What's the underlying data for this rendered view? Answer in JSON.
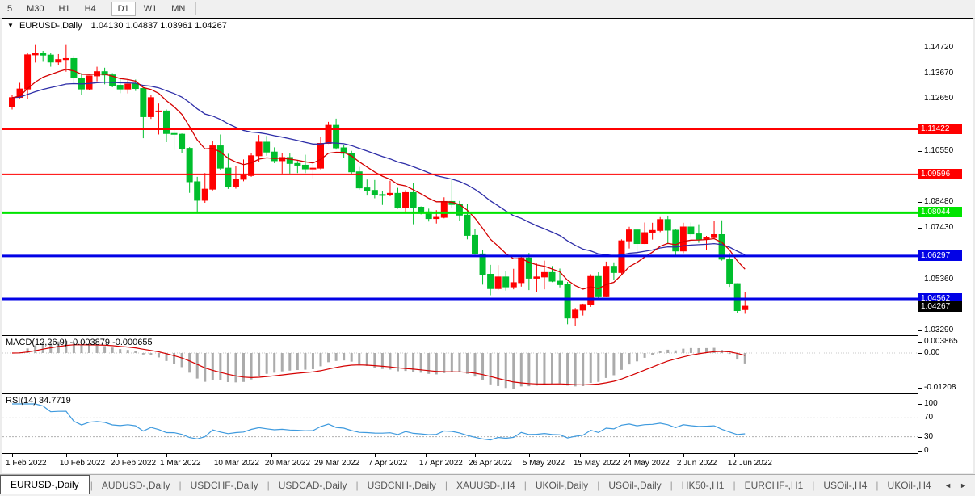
{
  "toolbar": {
    "timeframes": [
      {
        "label": "5",
        "active": false,
        "sep_after": false
      },
      {
        "label": "M30",
        "active": false,
        "sep_after": false
      },
      {
        "label": "H1",
        "active": false,
        "sep_after": false
      },
      {
        "label": "H4",
        "active": false,
        "sep_after": true
      },
      {
        "label": "D1",
        "active": true,
        "sep_after": false
      },
      {
        "label": "W1",
        "active": false,
        "sep_after": false
      },
      {
        "label": "MN",
        "active": false,
        "sep_after": true
      }
    ]
  },
  "chart": {
    "title_marker": "▼",
    "title_symbol": "EURUSD-,Daily",
    "title_ohlc": "1.04130 1.04837 1.03961 1.04267",
    "macd_label": "MACD(12,26,9) -0.003879 -0.000655",
    "rsi_label": "RSI(14) 34.7719"
  },
  "chart_data": {
    "type": "candlestick",
    "symbol": "EURUSD-",
    "timeframe": "Daily",
    "ohlc_display": {
      "open": "1.04130",
      "high": "1.04837",
      "low": "1.03961",
      "close": "1.04267"
    },
    "colors": {
      "up": "#ff0000",
      "down": "#00be2d",
      "ma_fast": "#d40000",
      "ma_slow": "#2e2ea8",
      "hline_red": "#ff0000",
      "hline_green": "#00e400",
      "hline_blue": "#0202e6",
      "macd_hist": "#ababab",
      "macd_signal": "#d40000",
      "rsi": "#3e9ade",
      "current_bg": "#000000"
    },
    "y_range": {
      "top_price": 1.1472,
      "top_y": 36,
      "bottom_price": 1.0329,
      "bottom_y": 386
    },
    "y_axis_ticks": [
      "1.14720",
      "1.13670",
      "1.12650",
      "1.10550",
      "1.08480",
      "1.07430",
      "1.05360",
      "1.03290"
    ],
    "hlines": [
      {
        "label": "1.11422",
        "price": 1.11422,
        "color": "#ff0000",
        "weight": 2
      },
      {
        "label": "1.09596",
        "price": 1.09596,
        "color": "#ff0000",
        "weight": 2
      },
      {
        "label": "1.08044",
        "price": 1.08044,
        "color": "#00e400",
        "weight": 3
      },
      {
        "label": "1.06297",
        "price": 1.06297,
        "color": "#0202e6",
        "weight": 3
      },
      {
        "label": "1.04562",
        "price": 1.04562,
        "color": "#0202e6",
        "weight": 3
      }
    ],
    "current_price": {
      "label": "1.04267",
      "price": 1.04267
    },
    "moving_averages": [
      {
        "name": "fast",
        "period": 10,
        "color": "#d40000"
      },
      {
        "name": "slow",
        "period": 30,
        "color": "#2e2ea8"
      }
    ],
    "macd": {
      "label": "MACD(12,26,9) -0.003879 -0.000655",
      "params": [
        12,
        26,
        9
      ],
      "values_display": [
        "-0.003879",
        "-0.000655"
      ],
      "axis": [
        {
          "t": "0.003865",
          "v": 0.003865
        },
        {
          "t": "0.00",
          "v": 0
        },
        {
          "t": "-0.01208",
          "v": -0.01208
        }
      ]
    },
    "rsi": {
      "label": "RSI(14) 34.7719",
      "period": 14,
      "value": 34.7719,
      "axis": [
        {
          "t": "100",
          "v": 100
        },
        {
          "t": "70",
          "v": 70
        },
        {
          "t": "30",
          "v": 30
        },
        {
          "t": "0",
          "v": 0
        }
      ],
      "levels": [
        70,
        30
      ]
    },
    "date_labels": [
      [
        "1 Feb 2022",
        0
      ],
      [
        "10 Feb 2022",
        7
      ],
      [
        "20 Feb 2022",
        13.6
      ],
      [
        "1 Mar 2022",
        20
      ],
      [
        "10 Mar 2022",
        27
      ],
      [
        "20 Mar 2022",
        33.6
      ],
      [
        "29 Mar 2022",
        40
      ],
      [
        "7 Apr 2022",
        47
      ],
      [
        "17 Apr 2022",
        53.6
      ],
      [
        "26 Apr 2022",
        60
      ],
      [
        "5 May 2022",
        67
      ],
      [
        "15 May 2022",
        73.6
      ],
      [
        "24 May 2022",
        80
      ],
      [
        "2 Jun 2022",
        87
      ],
      [
        "12 Jun 2022",
        93.6
      ]
    ],
    "candles": [
      [
        1.1235,
        1.128,
        1.1222,
        1.127
      ],
      [
        1.1271,
        1.133,
        1.1267,
        1.1305
      ],
      [
        1.1305,
        1.1451,
        1.1266,
        1.1443
      ],
      [
        1.1443,
        1.1483,
        1.1412,
        1.145
      ],
      [
        1.1448,
        1.1459,
        1.1415,
        1.1442
      ],
      [
        1.1442,
        1.1449,
        1.1395,
        1.1414
      ],
      [
        1.1414,
        1.1446,
        1.1402,
        1.1424
      ],
      [
        1.1424,
        1.1483,
        1.1375,
        1.1428
      ],
      [
        1.1428,
        1.144,
        1.1329,
        1.135
      ],
      [
        1.1348,
        1.1369,
        1.128,
        1.1305
      ],
      [
        1.1305,
        1.1359,
        1.1301,
        1.1358
      ],
      [
        1.1358,
        1.1395,
        1.1336,
        1.1375
      ],
      [
        1.1375,
        1.1391,
        1.1324,
        1.1362
      ],
      [
        1.1362,
        1.1369,
        1.1312,
        1.132
      ],
      [
        1.132,
        1.135,
        1.1288,
        1.1305
      ],
      [
        1.1305,
        1.1342,
        1.1287,
        1.1325
      ],
      [
        1.1325,
        1.1343,
        1.1297,
        1.1307
      ],
      [
        1.1307,
        1.131,
        1.1106,
        1.1193
      ],
      [
        1.1193,
        1.128,
        1.1184,
        1.127
      ],
      [
        1.1215,
        1.1246,
        1.1121,
        1.1216
      ],
      [
        1.1216,
        1.1222,
        1.109,
        1.1125
      ],
      [
        1.1125,
        1.1147,
        1.1058,
        1.1122
      ],
      [
        1.1122,
        1.1125,
        1.1045,
        1.1065
      ],
      [
        1.1065,
        1.107,
        1.0885,
        1.093
      ],
      [
        1.093,
        1.095,
        1.0806,
        1.0855
      ],
      [
        1.0855,
        1.0965,
        1.0845,
        1.09
      ],
      [
        1.09,
        1.1095,
        1.0895,
        1.1075
      ],
      [
        1.1075,
        1.1121,
        1.0977,
        1.0985
      ],
      [
        1.0985,
        1.1043,
        1.0901,
        1.091
      ],
      [
        1.091,
        1.0992,
        1.0902,
        1.094
      ],
      [
        1.094,
        1.102,
        1.0932,
        1.0955
      ],
      [
        1.0955,
        1.1046,
        1.095,
        1.1035
      ],
      [
        1.1035,
        1.1119,
        1.101,
        1.109
      ],
      [
        1.109,
        1.1115,
        1.1035,
        1.105
      ],
      [
        1.105,
        1.1069,
        1.1005,
        1.1015
      ],
      [
        1.1015,
        1.1046,
        1.0963,
        1.1028
      ],
      [
        1.1028,
        1.1044,
        1.0963,
        1.1004
      ],
      [
        1.1004,
        1.1014,
        1.0965,
        1.0997
      ],
      [
        1.0997,
        1.1039,
        1.0965,
        1.0982
      ],
      [
        1.0982,
        1.1,
        1.0944,
        1.0985
      ],
      [
        1.0985,
        1.111,
        1.098,
        1.1085
      ],
      [
        1.1085,
        1.1172,
        1.1083,
        1.1158
      ],
      [
        1.1158,
        1.1185,
        1.106,
        1.1067
      ],
      [
        1.1067,
        1.1077,
        1.1027,
        1.1045
      ],
      [
        1.1045,
        1.1055,
        1.096,
        1.097
      ],
      [
        1.097,
        1.099,
        1.0898,
        1.0905
      ],
      [
        1.0905,
        1.0939,
        1.0874,
        1.0895
      ],
      [
        1.0895,
        1.0937,
        1.0863,
        1.0878
      ],
      [
        1.0878,
        1.0892,
        1.0836,
        1.0876
      ],
      [
        1.0876,
        1.0934,
        1.0871,
        1.0883
      ],
      [
        1.0883,
        1.0905,
        1.0821,
        1.0827
      ],
      [
        1.0827,
        1.0896,
        1.0809,
        1.0886
      ],
      [
        1.0886,
        1.0924,
        1.0758,
        1.0827
      ],
      [
        1.0827,
        1.083,
        1.0798,
        1.0808
      ],
      [
        1.0808,
        1.0821,
        1.0769,
        1.0781
      ],
      [
        1.0781,
        1.0815,
        1.0761,
        1.0786
      ],
      [
        1.0786,
        1.0867,
        1.0782,
        1.085
      ],
      [
        1.085,
        1.0937,
        1.0824,
        1.0838
      ],
      [
        1.0838,
        1.0852,
        1.077,
        1.0795
      ],
      [
        1.0795,
        1.084,
        1.0697,
        1.0713
      ],
      [
        1.0713,
        1.0738,
        1.0635,
        1.0638
      ],
      [
        1.0638,
        1.0655,
        1.0514,
        1.0556
      ],
      [
        1.0556,
        1.0594,
        1.0471,
        1.0498
      ],
      [
        1.0498,
        1.0593,
        1.0492,
        1.0545
      ],
      [
        1.0545,
        1.0568,
        1.049,
        1.0505
      ],
      [
        1.0505,
        1.0578,
        1.0495,
        1.0522
      ],
      [
        1.0522,
        1.0632,
        1.0506,
        1.0622
      ],
      [
        1.0622,
        1.0642,
        1.0492,
        1.054
      ],
      [
        1.054,
        1.0599,
        1.0483,
        1.0545
      ],
      [
        1.0545,
        1.0611,
        1.0495,
        1.0563
      ],
      [
        1.0563,
        1.0589,
        1.0524,
        1.0528
      ],
      [
        1.0528,
        1.0579,
        1.0503,
        1.0514
      ],
      [
        1.0514,
        1.0525,
        1.0354,
        1.0379
      ],
      [
        1.0379,
        1.042,
        1.0348,
        1.0411
      ],
      [
        1.0411,
        1.0437,
        1.0389,
        1.0434
      ],
      [
        1.0434,
        1.0556,
        1.0424,
        1.0547
      ],
      [
        1.0547,
        1.0564,
        1.0459,
        1.0465
      ],
      [
        1.0465,
        1.0607,
        1.0463,
        1.0588
      ],
      [
        1.0588,
        1.0604,
        1.0532,
        1.0563
      ],
      [
        1.0563,
        1.0697,
        1.0556,
        1.0691
      ],
      [
        1.0691,
        1.0748,
        1.066,
        1.0735
      ],
      [
        1.0735,
        1.0739,
        1.0641,
        1.068
      ],
      [
        1.068,
        1.0765,
        1.0678,
        1.0724
      ],
      [
        1.0724,
        1.0764,
        1.0696,
        1.0733
      ],
      [
        1.0733,
        1.0787,
        1.0726,
        1.0777
      ],
      [
        1.0777,
        1.0793,
        1.0678,
        1.0734
      ],
      [
        1.0734,
        1.0739,
        1.0627,
        1.065
      ],
      [
        1.065,
        1.0764,
        1.0641,
        1.0747
      ],
      [
        1.0747,
        1.0765,
        1.0704,
        1.0719
      ],
      [
        1.0719,
        1.0758,
        1.0683,
        1.0697
      ],
      [
        1.0697,
        1.0711,
        1.0653,
        1.0704
      ],
      [
        1.0704,
        1.0773,
        1.0698,
        1.0716
      ],
      [
        1.0716,
        1.0774,
        1.0611,
        1.0617
      ],
      [
        1.0617,
        1.0642,
        1.0505,
        1.0518
      ],
      [
        1.0518,
        1.052,
        1.0399,
        1.0409
      ],
      [
        1.0413,
        1.04837,
        1.03961,
        1.04267
      ]
    ]
  },
  "tabbar": {
    "separator": "|",
    "scroll_left": "◄",
    "scroll_right": "►",
    "tabs": [
      {
        "label": "EURUSD-,Daily",
        "active": true
      },
      {
        "label": "AUDUSD-,Daily",
        "active": false
      },
      {
        "label": "USDCHF-,Daily",
        "active": false
      },
      {
        "label": "USDCAD-,Daily",
        "active": false
      },
      {
        "label": "USDCNH-,Daily",
        "active": false
      },
      {
        "label": "XAUUSD-,H4",
        "active": false
      },
      {
        "label": "UKOil-,Daily",
        "active": false
      },
      {
        "label": "USOil-,Daily",
        "active": false
      },
      {
        "label": "HK50-,H1",
        "active": false
      },
      {
        "label": "EURCHF-,H1",
        "active": false
      },
      {
        "label": "USOil-,H4",
        "active": false
      },
      {
        "label": "UKOil-,H4",
        "active": false
      }
    ]
  }
}
